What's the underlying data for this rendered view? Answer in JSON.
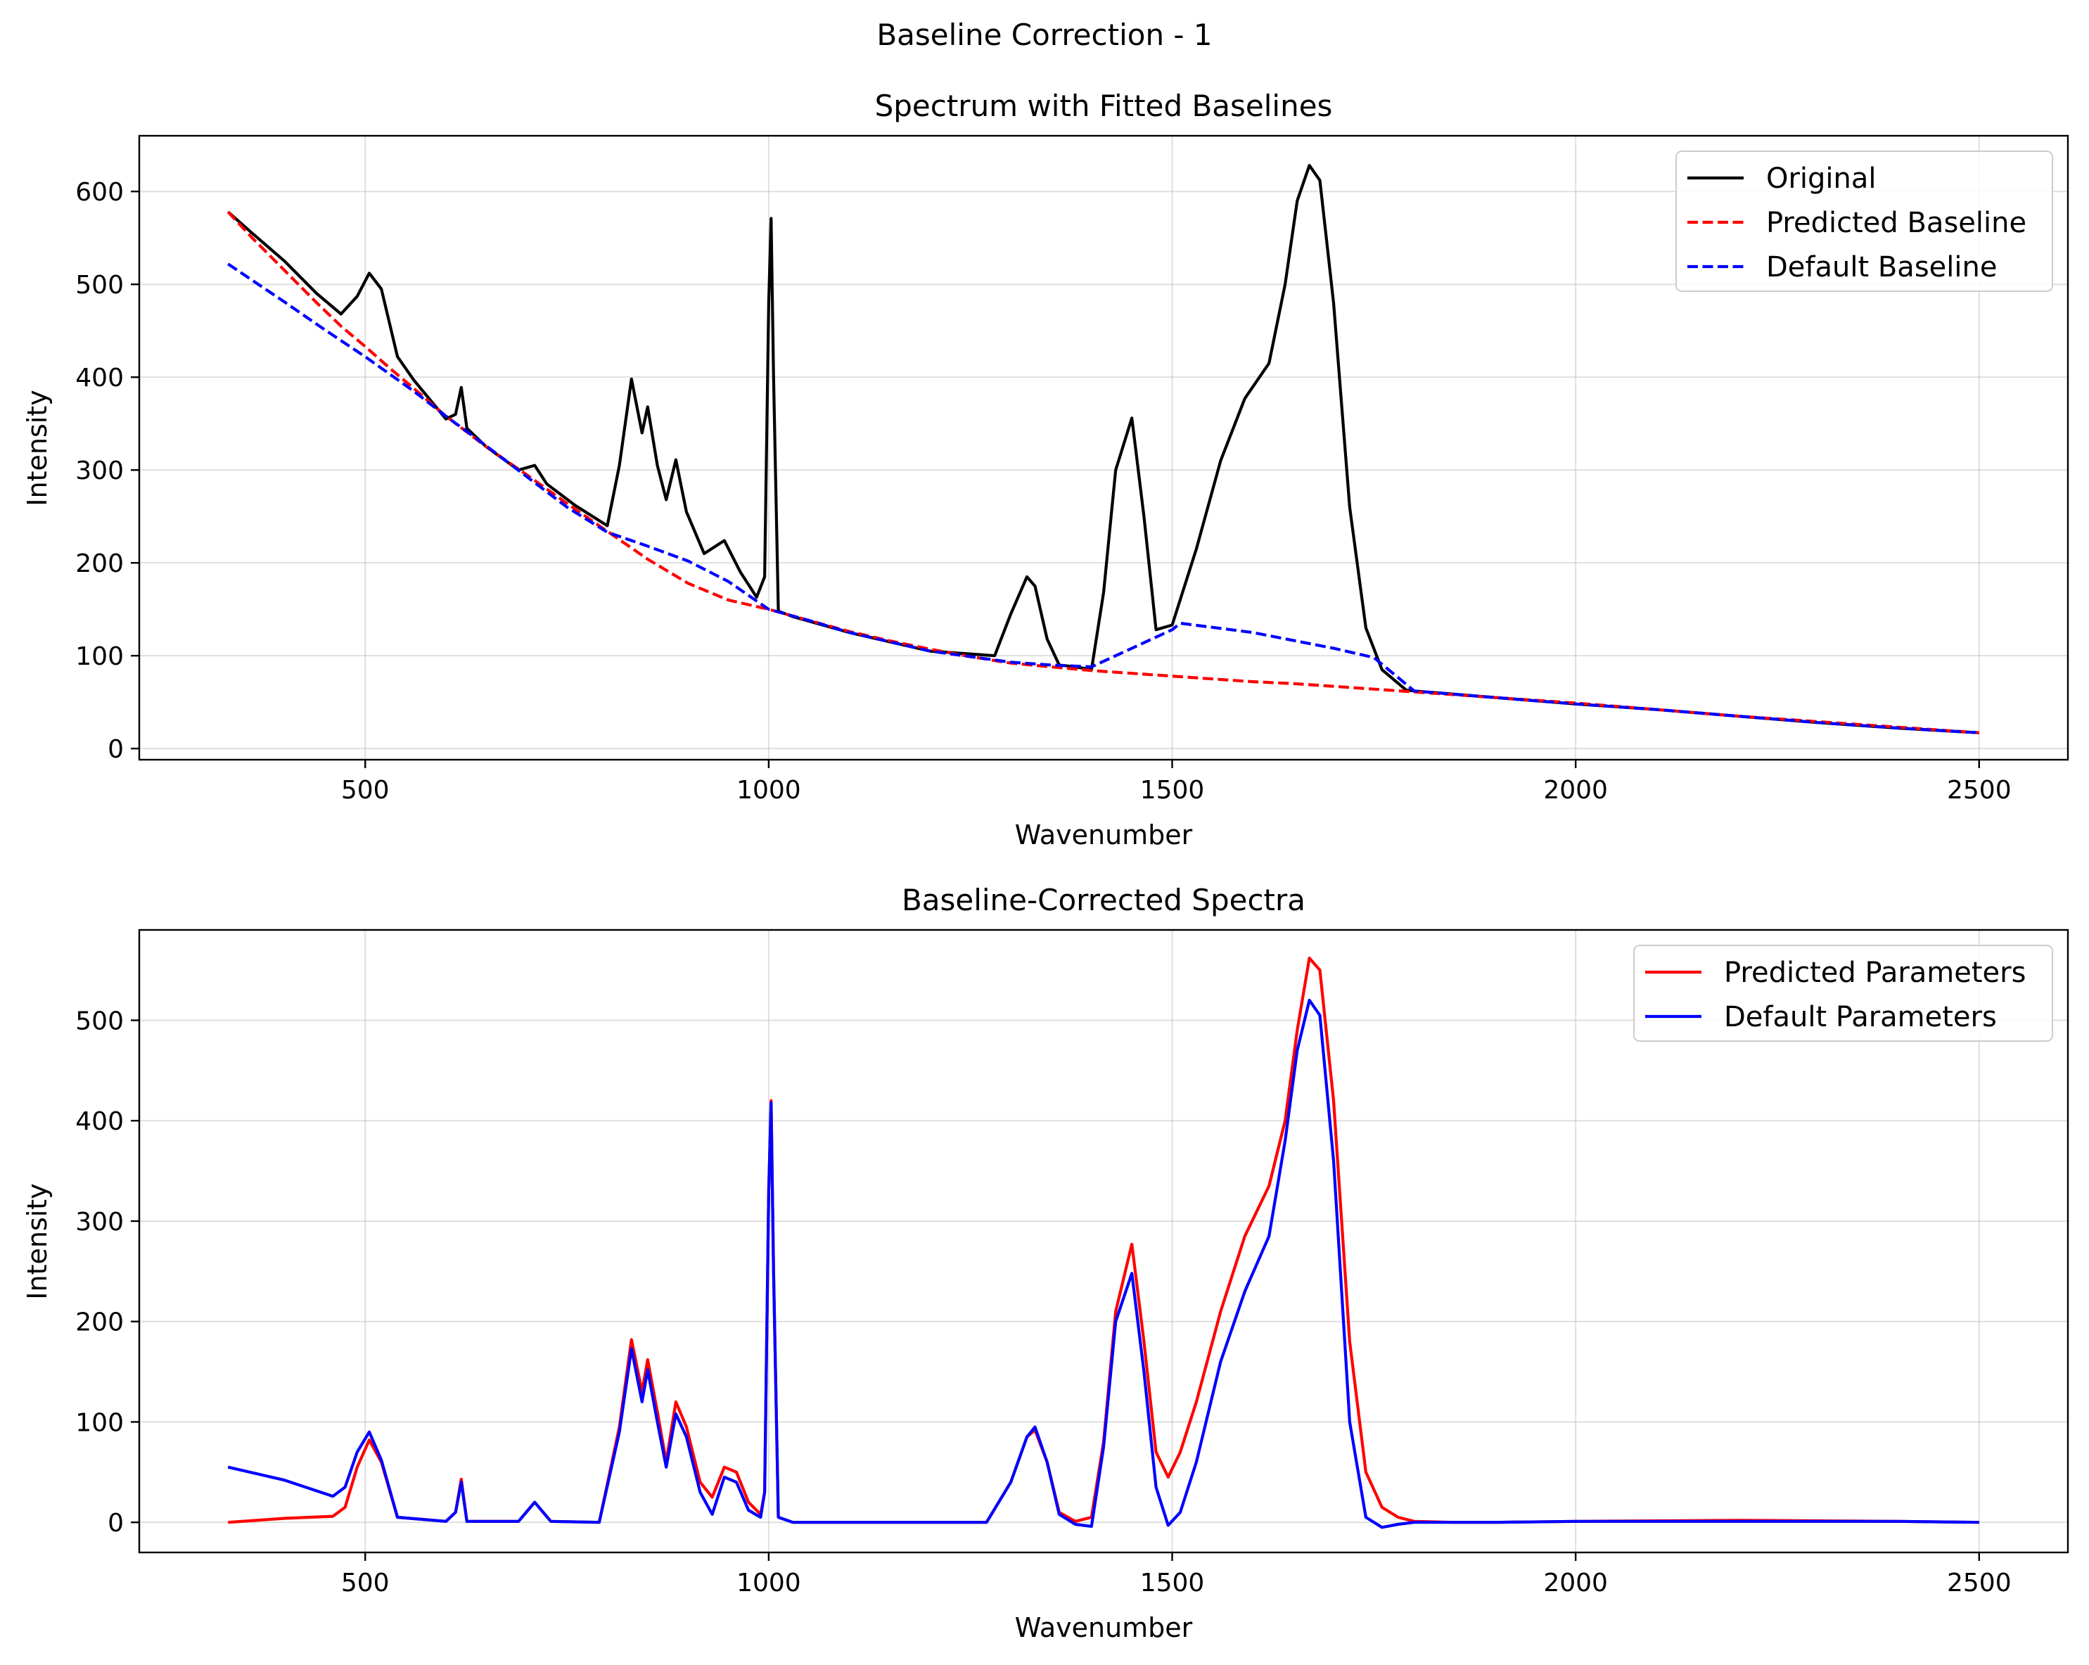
{
  "figure": {
    "suptitle": "Baseline Correction - 1"
  },
  "colors": {
    "black": "#000000",
    "red": "#ff0000",
    "blue": "#0000ff"
  },
  "chart_data": [
    {
      "type": "line",
      "title": "Spectrum with Fitted Baselines",
      "xlabel": "Wavenumber",
      "ylabel": "Intensity",
      "xlim": [
        220,
        2610
      ],
      "ylim": [
        -12,
        660
      ],
      "xticks": [
        500,
        1000,
        1500,
        2000,
        2500
      ],
      "yticks": [
        0,
        100,
        200,
        300,
        400,
        500,
        600
      ],
      "grid": true,
      "legend_position": "upper right",
      "series": [
        {
          "name": "Original",
          "color": "#000000",
          "style": "solid",
          "x": [
            330,
            360,
            400,
            440,
            470,
            490,
            505,
            520,
            540,
            560,
            600,
            612,
            619,
            626,
            650,
            690,
            710,
            725,
            760,
            800,
            815,
            830,
            843,
            850,
            862,
            873,
            885,
            898,
            920,
            945,
            965,
            985,
            995,
            1000,
            1003,
            1006,
            1012,
            1030,
            1100,
            1200,
            1280,
            1300,
            1320,
            1330,
            1345,
            1360,
            1380,
            1400,
            1415,
            1430,
            1450,
            1465,
            1480,
            1500,
            1530,
            1560,
            1590,
            1620,
            1640,
            1655,
            1670,
            1683,
            1700,
            1720,
            1740,
            1760,
            1790,
            1800,
            1900,
            2000,
            2100,
            2200,
            2300,
            2400,
            2500
          ],
          "y": [
            578,
            555,
            525,
            490,
            468,
            487,
            512,
            495,
            422,
            397,
            355,
            360,
            389,
            345,
            325,
            300,
            305,
            285,
            262,
            240,
            305,
            398,
            340,
            368,
            305,
            268,
            311,
            255,
            210,
            224,
            190,
            163,
            185,
            480,
            571,
            400,
            148,
            142,
            125,
            105,
            100,
            145,
            185,
            175,
            118,
            90,
            88,
            85,
            168,
            300,
            356,
            250,
            128,
            133,
            215,
            310,
            377,
            415,
            500,
            590,
            628,
            612,
            480,
            260,
            130,
            85,
            63,
            62,
            55,
            48,
            42,
            35,
            28,
            22,
            17
          ]
        },
        {
          "name": "Predicted Baseline",
          "color": "#ff0000",
          "style": "dashed",
          "x": [
            330,
            360,
            400,
            440,
            470,
            500,
            530,
            560,
            600,
            650,
            700,
            750,
            800,
            850,
            900,
            950,
            1000,
            1050,
            1100,
            1150,
            1200,
            1250,
            1300,
            1350,
            1400,
            1450,
            1500,
            1550,
            1600,
            1650,
            1700,
            1750,
            1800,
            1900,
            2000,
            2100,
            2200,
            2300,
            2400,
            2500
          ],
          "y": [
            578,
            550,
            515,
            480,
            455,
            433,
            410,
            388,
            358,
            325,
            295,
            264,
            234,
            204,
            178,
            160,
            150,
            138,
            126,
            116,
            107,
            99,
            92,
            88,
            84,
            81,
            78,
            75,
            72,
            70,
            67,
            64,
            61,
            55,
            49,
            42,
            35,
            29,
            23,
            17
          ]
        },
        {
          "name": "Default Baseline",
          "color": "#0000ff",
          "style": "dashed",
          "x": [
            330,
            400,
            450,
            500,
            560,
            600,
            650,
            700,
            750,
            800,
            850,
            900,
            950,
            1000,
            1050,
            1100,
            1200,
            1300,
            1350,
            1400,
            1450,
            1500,
            1510,
            1600,
            1700,
            1750,
            1800,
            1900,
            2000,
            2100,
            2200,
            2300,
            2400,
            2500
          ],
          "y": [
            522,
            481,
            451,
            422,
            385,
            358,
            326,
            293,
            260,
            233,
            218,
            202,
            180,
            150,
            138,
            125,
            105,
            93,
            90,
            88,
            108,
            128,
            135,
            125,
            108,
            98,
            62,
            55,
            48,
            42,
            35,
            28,
            22,
            17
          ]
        }
      ]
    },
    {
      "type": "line",
      "title": "Baseline-Corrected Spectra",
      "xlabel": "Wavenumber",
      "ylabel": "Intensity",
      "xlim": [
        220,
        2610
      ],
      "ylim": [
        -30,
        590
      ],
      "xticks": [
        500,
        1000,
        1500,
        2000,
        2500
      ],
      "yticks": [
        0,
        100,
        200,
        300,
        400,
        500
      ],
      "grid": true,
      "legend_position": "upper right",
      "series": [
        {
          "name": "Predicted Parameters",
          "color": "#ff0000",
          "style": "solid",
          "x": [
            330,
            400,
            460,
            475,
            490,
            505,
            520,
            540,
            600,
            612,
            619,
            626,
            690,
            710,
            730,
            790,
            815,
            830,
            843,
            850,
            862,
            873,
            885,
            898,
            915,
            930,
            945,
            960,
            975,
            990,
            995,
            1000,
            1003,
            1006,
            1012,
            1030,
            1270,
            1300,
            1320,
            1330,
            1345,
            1360,
            1380,
            1400,
            1415,
            1430,
            1450,
            1465,
            1480,
            1495,
            1510,
            1530,
            1560,
            1590,
            1620,
            1640,
            1655,
            1670,
            1683,
            1700,
            1720,
            1740,
            1760,
            1780,
            1800,
            1850,
            1900,
            2000,
            2200,
            2400,
            2500
          ],
          "y": [
            0,
            4,
            6,
            15,
            55,
            82,
            60,
            5,
            1,
            10,
            43,
            1,
            1,
            20,
            1,
            0,
            95,
            182,
            130,
            162,
            110,
            60,
            120,
            95,
            40,
            25,
            55,
            50,
            20,
            8,
            30,
            330,
            420,
            250,
            5,
            0,
            0,
            40,
            85,
            92,
            60,
            10,
            1,
            5,
            80,
            210,
            277,
            180,
            70,
            45,
            70,
            120,
            210,
            285,
            335,
            400,
            490,
            562,
            550,
            420,
            180,
            50,
            15,
            5,
            1,
            0,
            0,
            1,
            2,
            1,
            0
          ]
        },
        {
          "name": "Default Parameters",
          "color": "#0000ff",
          "style": "solid",
          "x": [
            330,
            400,
            460,
            475,
            490,
            505,
            520,
            540,
            600,
            612,
            619,
            626,
            690,
            710,
            730,
            790,
            815,
            830,
            843,
            850,
            862,
            873,
            885,
            898,
            915,
            930,
            945,
            960,
            975,
            990,
            995,
            1000,
            1003,
            1006,
            1012,
            1030,
            1270,
            1300,
            1320,
            1330,
            1345,
            1360,
            1380,
            1400,
            1415,
            1430,
            1450,
            1465,
            1480,
            1495,
            1510,
            1530,
            1560,
            1590,
            1620,
            1640,
            1655,
            1670,
            1683,
            1700,
            1720,
            1740,
            1760,
            1780,
            1800,
            1850,
            1900,
            2000,
            2200,
            2400,
            2500
          ],
          "y": [
            55,
            42,
            26,
            35,
            70,
            90,
            62,
            5,
            1,
            10,
            40,
            1,
            1,
            20,
            1,
            0,
            90,
            173,
            120,
            152,
            100,
            55,
            108,
            85,
            30,
            8,
            45,
            40,
            12,
            5,
            30,
            330,
            418,
            250,
            5,
            0,
            0,
            40,
            85,
            95,
            60,
            8,
            -2,
            -4,
            75,
            200,
            248,
            150,
            35,
            -3,
            10,
            60,
            160,
            230,
            285,
            380,
            470,
            520,
            505,
            360,
            100,
            5,
            -5,
            -2,
            0,
            0,
            0,
            1,
            1,
            1,
            0
          ]
        }
      ]
    }
  ]
}
